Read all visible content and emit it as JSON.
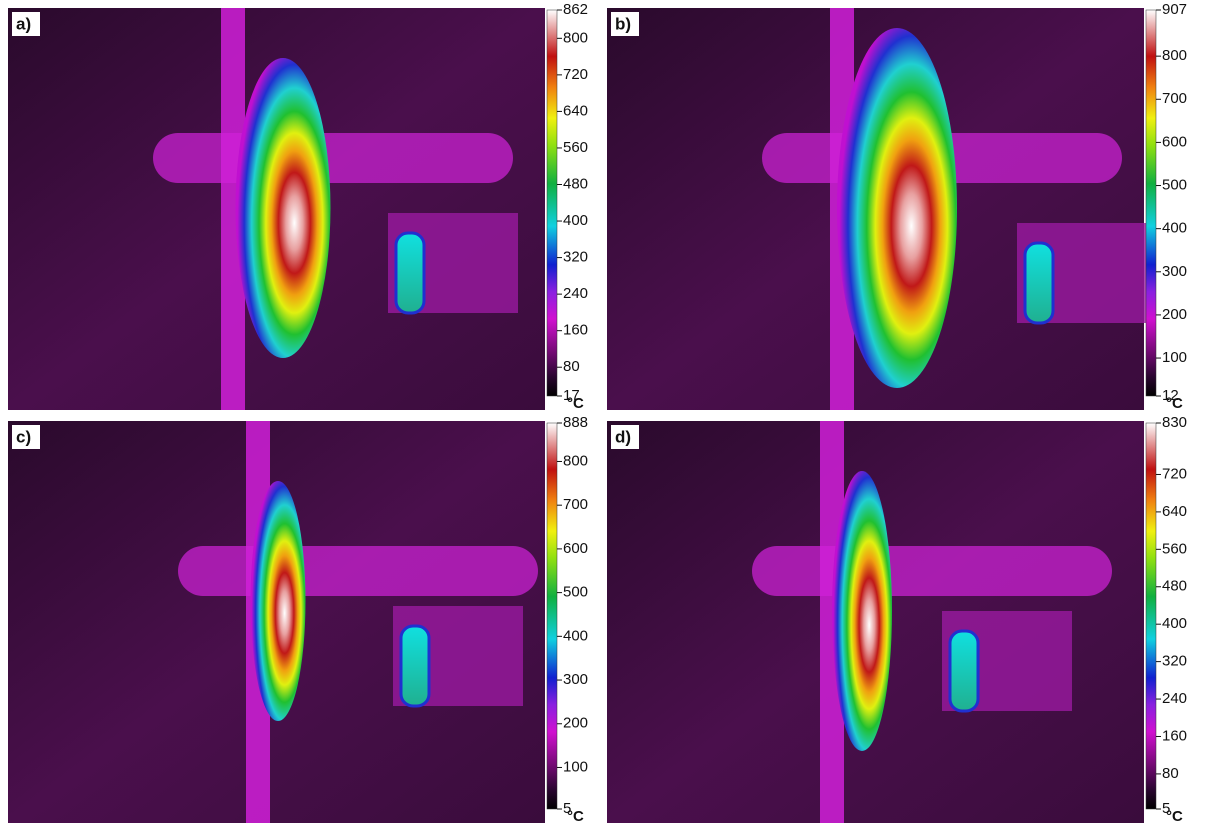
{
  "panels": [
    {
      "label": "a)",
      "unit": "°C",
      "ticks": [
        862,
        800,
        720,
        640,
        560,
        480,
        400,
        320,
        240,
        160,
        80,
        17
      ]
    },
    {
      "label": "b)",
      "unit": "°C",
      "ticks": [
        907,
        800,
        700,
        600,
        500,
        400,
        300,
        200,
        100,
        12
      ]
    },
    {
      "label": "c)",
      "unit": "°C",
      "ticks": [
        888,
        800,
        700,
        600,
        500,
        400,
        300,
        200,
        100,
        5
      ]
    },
    {
      "label": "d)",
      "unit": "°C",
      "ticks": [
        830,
        720,
        640,
        560,
        480,
        400,
        320,
        240,
        160,
        80,
        5
      ]
    }
  ]
}
